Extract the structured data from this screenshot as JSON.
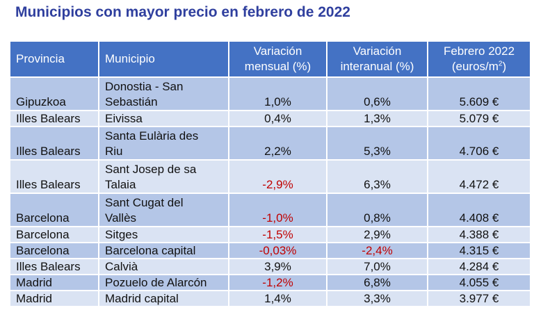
{
  "title": "Municipios con mayor precio en febrero de 2022",
  "table": {
    "headers": {
      "provincia": "Provincia",
      "municipio": "Municipio",
      "var_mensual_l1": "Variación",
      "var_mensual_l2": "mensual (%)",
      "var_interanual_l1": "Variación",
      "var_interanual_l2": "interanual (%)",
      "precio_l1": "Febrero 2022",
      "precio_l2_pre": "(euros/m",
      "precio_l2_sup": "2",
      "precio_l2_post": ")"
    },
    "rows": [
      {
        "provincia": "Gipuzkoa",
        "municipio_l1": "Donostia - San",
        "municipio_l2": "Sebastián",
        "mensual": "1,0%",
        "interanual": "0,6%",
        "precio": "5.609 €"
      },
      {
        "provincia": "Illes Balears",
        "municipio_l1": "Eivissa",
        "municipio_l2": "",
        "mensual": "0,4%",
        "interanual": "1,3%",
        "precio": "5.079 €"
      },
      {
        "provincia": "Illes Balears",
        "municipio_l1": "Santa Eulària des",
        "municipio_l2": "Riu",
        "mensual": "2,2%",
        "interanual": "5,3%",
        "precio": "4.706 €"
      },
      {
        "provincia": "Illes Balears",
        "municipio_l1": "Sant Josep de sa",
        "municipio_l2": "Talaia",
        "mensual": "-2,9%",
        "interanual": "6,3%",
        "precio": "4.472 €"
      },
      {
        "provincia": "Barcelona",
        "municipio_l1": "Sant Cugat del",
        "municipio_l2": "Vallès",
        "mensual": "-1,0%",
        "interanual": "0,8%",
        "precio": "4.408 €"
      },
      {
        "provincia": "Barcelona",
        "municipio_l1": "Sitges",
        "municipio_l2": "",
        "mensual": "-1,5%",
        "interanual": "2,9%",
        "precio": "4.388 €"
      },
      {
        "provincia": "Barcelona",
        "municipio_l1": "Barcelona capital",
        "municipio_l2": "",
        "mensual": "-0,03%",
        "interanual": "-2,4%",
        "precio": "4.315 €"
      },
      {
        "provincia": "Illes Balears",
        "municipio_l1": "Calvià",
        "municipio_l2": "",
        "mensual": "3,9%",
        "interanual": "7,0%",
        "precio": "4.284 €"
      },
      {
        "provincia": "Madrid",
        "municipio_l1": "Pozuelo de Alarcón",
        "municipio_l2": "",
        "mensual": "-1,2%",
        "interanual": "6,8%",
        "precio": "4.055 €"
      },
      {
        "provincia": "Madrid",
        "municipio_l1": "Madrid capital",
        "municipio_l2": "",
        "mensual": "1,4%",
        "interanual": "3,3%",
        "precio": "3.977 €"
      }
    ]
  },
  "colors": {
    "title": "#2f3f9e",
    "header_bg": "#4472c4",
    "row_odd": "#b4c6e7",
    "row_even": "#dae3f3",
    "negative": "#c00000"
  }
}
